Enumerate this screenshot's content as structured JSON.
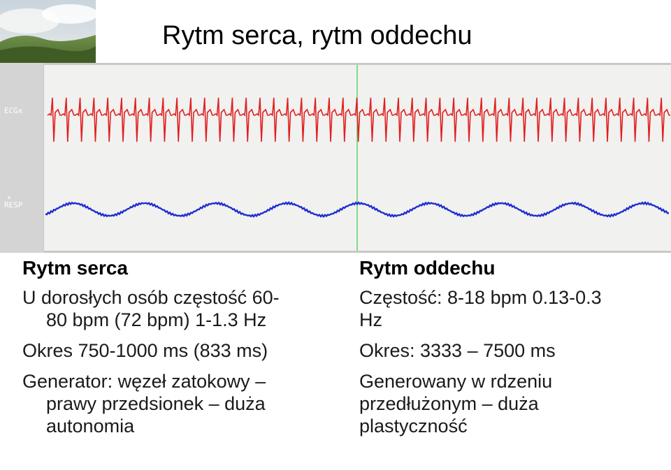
{
  "title": "Rytm serca, rytm oddechu",
  "monitor": {
    "ecg_label": "ECGx",
    "resp_label": "RESP",
    "colors": {
      "ecg": "#e02020",
      "resp": "#1f2ecf",
      "marker": "#7fdc8a",
      "panel": "#c8c8c8"
    }
  },
  "left": {
    "heading": "Rytm serca",
    "p1_line1": "U dorosłych osób częstość 60-",
    "p1_line2": "80 bpm (72 bpm)   1-1.3 Hz",
    "p2": "Okres 750-1000 ms (833 ms)",
    "p3_line1": "Generator: węzeł zatokowy –",
    "p3_line2": "prawy przedsionek – duża",
    "p3_line3": "autonomia"
  },
  "right": {
    "heading": "Rytm oddechu",
    "p1_line1": "Częstość: 8-18 bpm 0.13-0.3",
    "p1_line2": "Hz",
    "p2": "Okres: 3333 – 7500 ms",
    "p3_line1": "Generowany w rdzeniu",
    "p3_line2": "przedłużonym – duża",
    "p3_line3": "plastyczność"
  }
}
